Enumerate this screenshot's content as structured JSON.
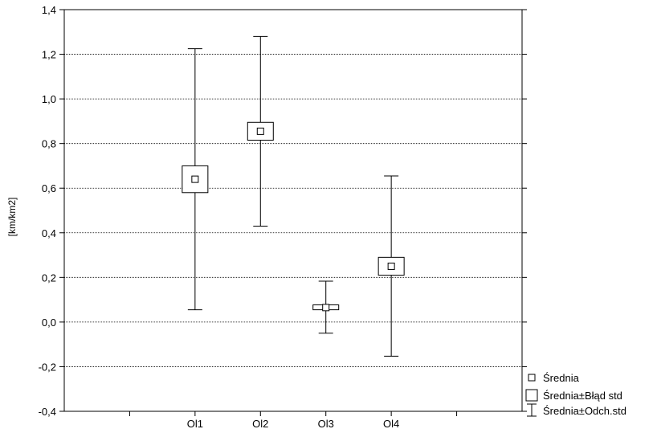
{
  "chart_data": {
    "type": "box-whisker",
    "title": "",
    "xlabel": "",
    "ylabel": "[km/km2]",
    "ylim": [
      -0.4,
      1.4
    ],
    "y_ticks": [
      "-0,4",
      "-0,2",
      "0,0",
      "0,2",
      "0,4",
      "0,6",
      "0,8",
      "1,0",
      "1,2",
      "1,4"
    ],
    "y_tick_values": [
      -0.4,
      -0.2,
      0.0,
      0.2,
      0.4,
      0.6,
      0.8,
      1.0,
      1.2,
      1.4
    ],
    "grid": true,
    "categories": [
      "Ol1",
      "Ol2",
      "Ol3",
      "Ol4"
    ],
    "series": [
      {
        "category": "Ol1",
        "mean": 0.64,
        "se_low": 0.58,
        "se_high": 0.7,
        "sd_low": 0.055,
        "sd_high": 1.225
      },
      {
        "category": "Ol2",
        "mean": 0.855,
        "se_low": 0.815,
        "se_high": 0.895,
        "sd_low": 0.43,
        "sd_high": 1.28
      },
      {
        "category": "Ol3",
        "mean": 0.065,
        "se_low": 0.055,
        "se_high": 0.077,
        "sd_low": -0.05,
        "sd_high": 0.183
      },
      {
        "category": "Ol4",
        "mean": 0.25,
        "se_low": 0.21,
        "se_high": 0.29,
        "sd_low": -0.153,
        "sd_high": 0.655
      }
    ],
    "legend": {
      "placement": "bottom-right",
      "mean_label": "Średnia",
      "se_label": "Średnia±Błąd std",
      "sd_label": "Średnia±Odch.std"
    }
  }
}
